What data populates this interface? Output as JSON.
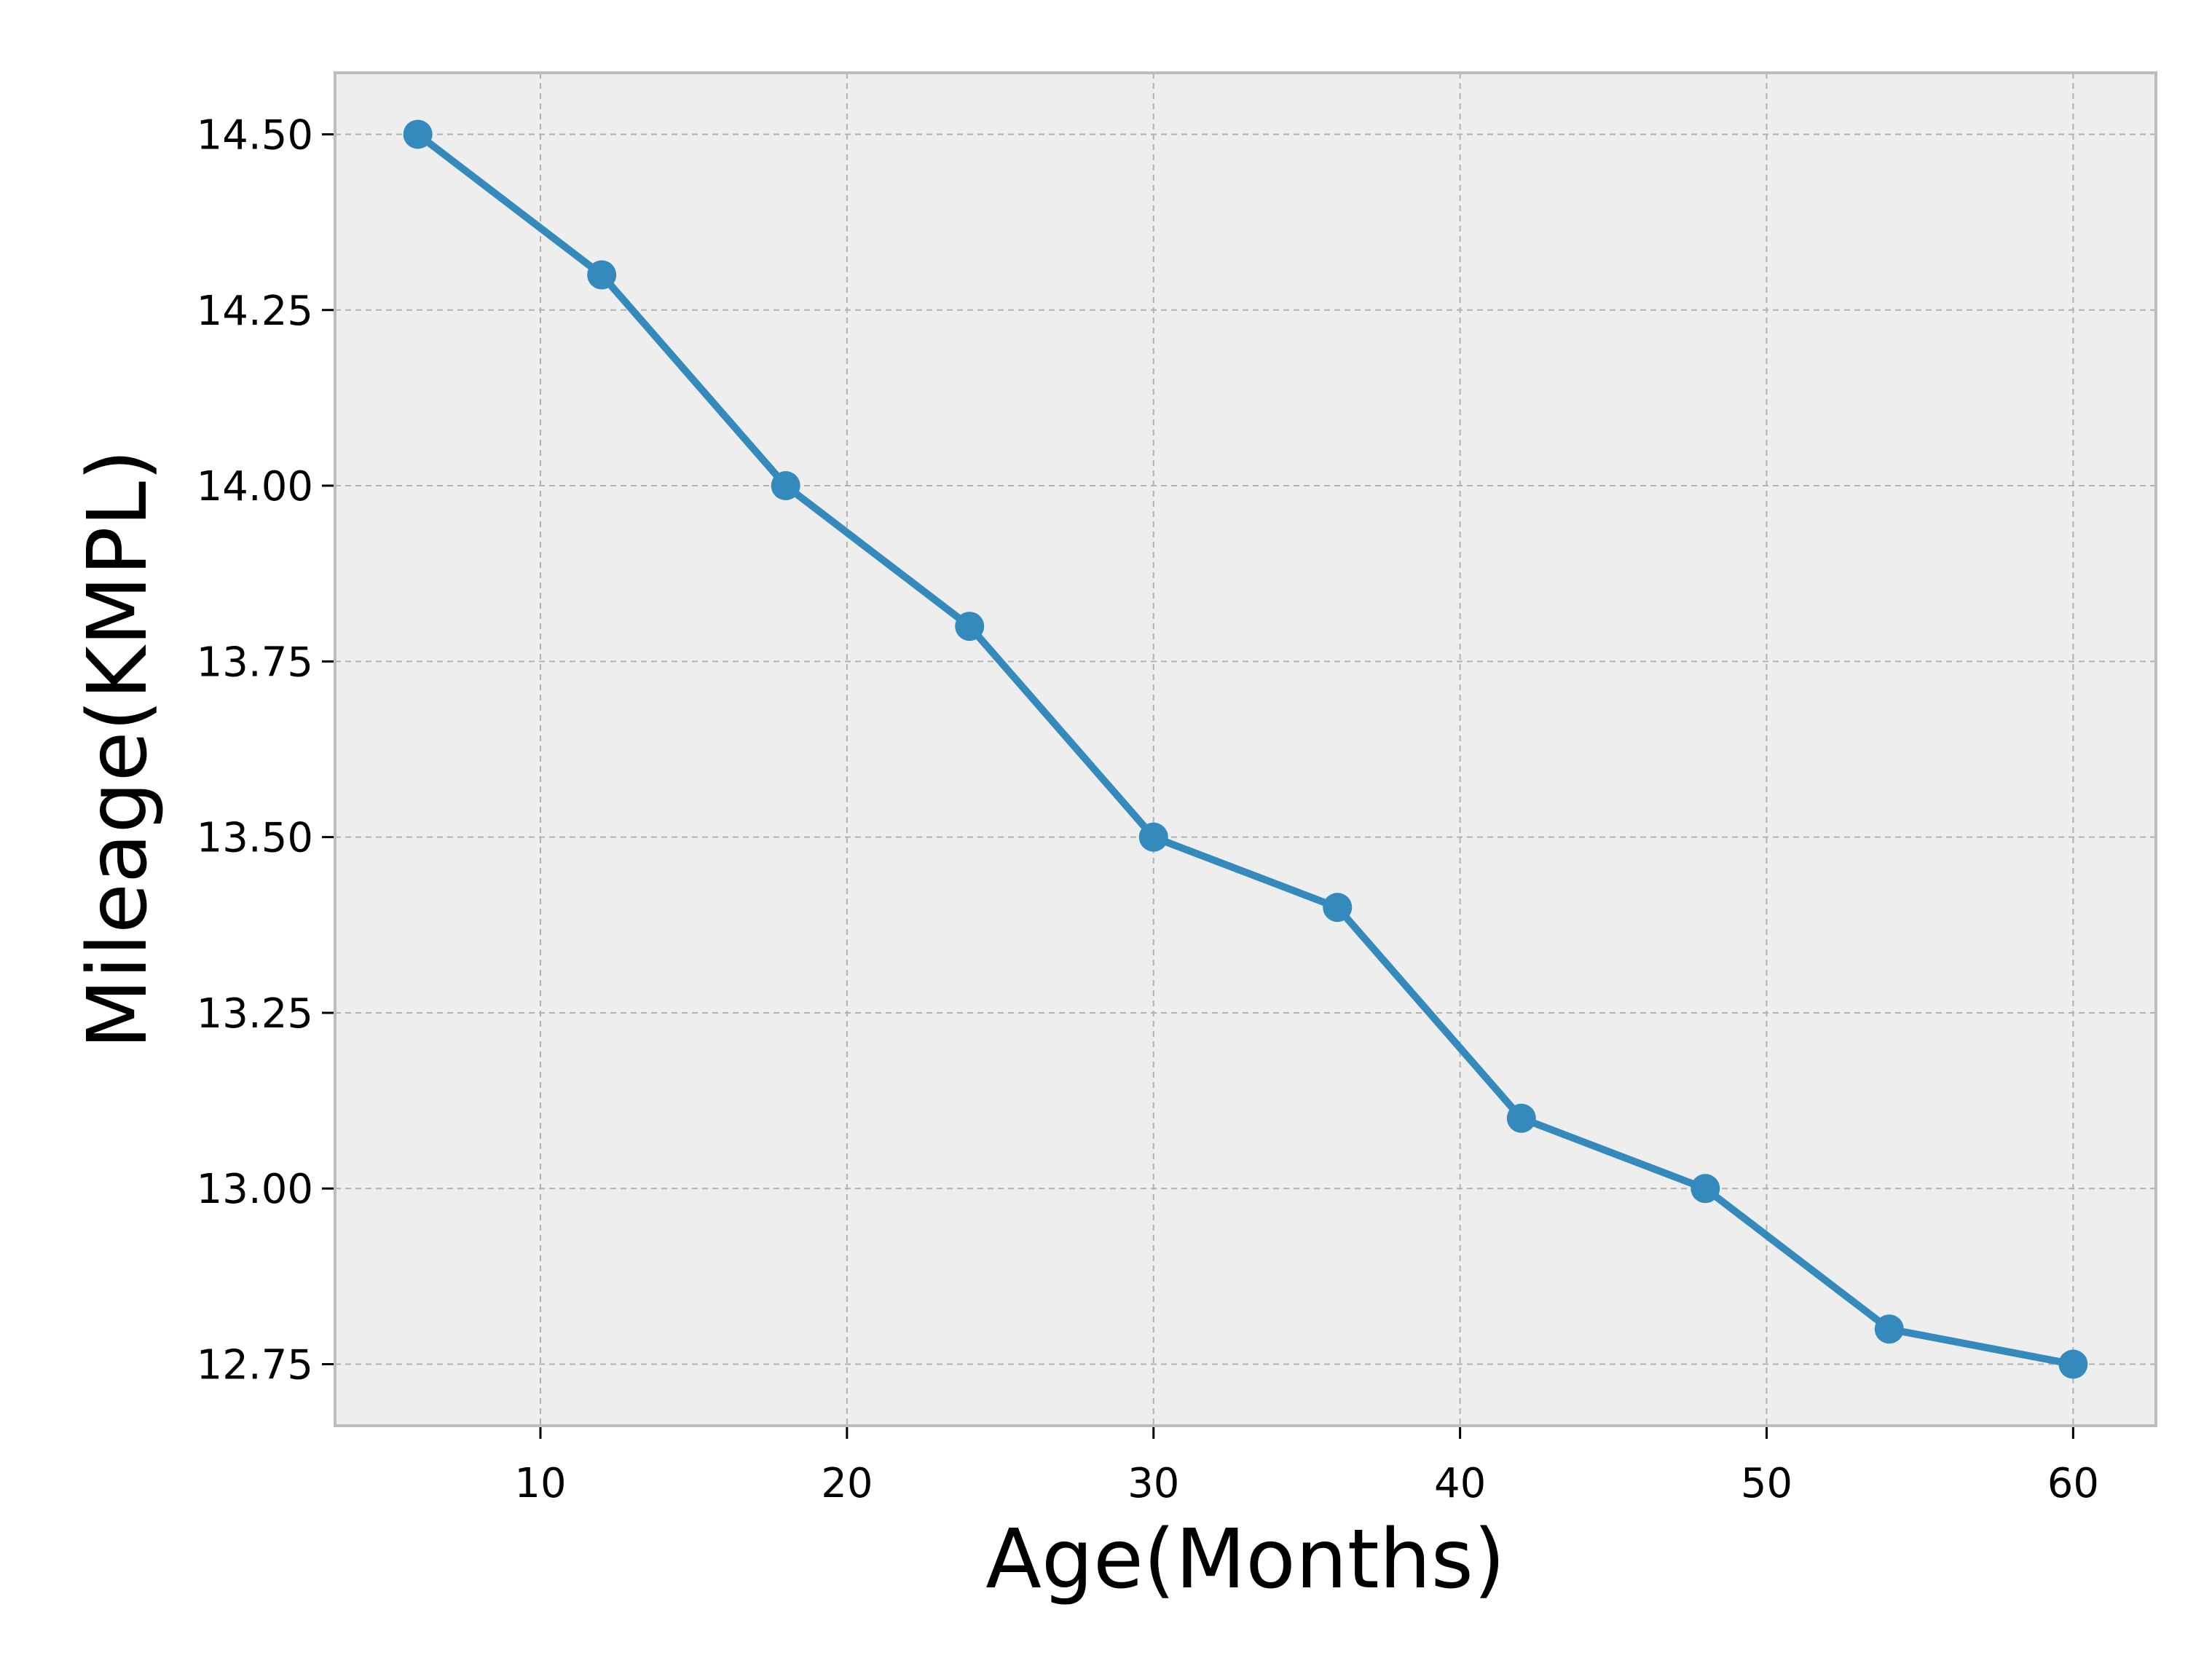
{
  "chart_data": {
    "type": "line",
    "title": "",
    "xlabel": "Age(Months)",
    "ylabel": "Mileage(KMPL)",
    "x": [
      6,
      12,
      18,
      24,
      30,
      36,
      42,
      48,
      54,
      60
    ],
    "series": [
      {
        "values": [
          14.5,
          14.3,
          14.0,
          13.8,
          13.5,
          13.4,
          13.1,
          13.0,
          12.8,
          12.75
        ],
        "color": "#348abd",
        "marker": "circle"
      }
    ],
    "xlim": [
      3.3,
      62.7
    ],
    "ylim": [
      12.6625,
      14.5875
    ],
    "xticks": [
      10,
      20,
      30,
      40,
      50,
      60
    ],
    "xtick_labels": [
      "10",
      "20",
      "30",
      "40",
      "50",
      "60"
    ],
    "yticks": [
      12.75,
      13.0,
      13.25,
      13.5,
      13.75,
      14.0,
      14.25,
      14.5
    ],
    "ytick_labels": [
      "12.75",
      "13.00",
      "13.25",
      "13.50",
      "13.75",
      "14.00",
      "14.25",
      "14.50"
    ],
    "grid": true,
    "legend": "none",
    "colors": {
      "plot_background": "#eeeeee",
      "frame": "#bcbcbc",
      "grid": "#b2b2b2",
      "text": "#000000"
    }
  }
}
